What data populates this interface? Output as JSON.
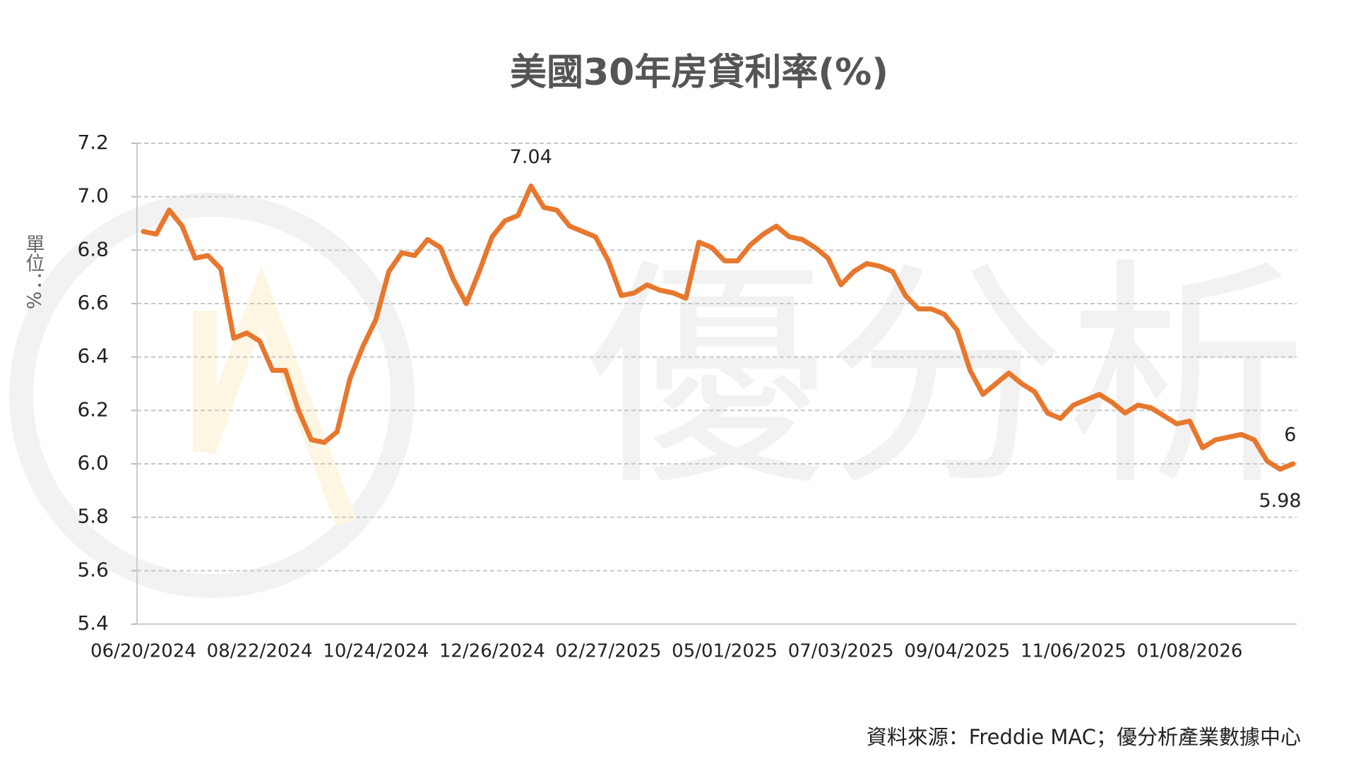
{
  "chart_data": {
    "type": "line",
    "title": "美國30年房貸利率(%)",
    "y_label": "單位：%",
    "source": "資料來源：Freddie MAC；優分析產業數據中心",
    "watermark": "優分析",
    "categories": [
      "06/20/2024",
      null,
      null,
      null,
      null,
      null,
      null,
      null,
      null,
      "08/22/2024",
      null,
      null,
      null,
      null,
      null,
      null,
      null,
      null,
      "10/24/2024",
      null,
      null,
      null,
      null,
      null,
      null,
      null,
      null,
      "12/26/2024",
      null,
      null,
      null,
      null,
      null,
      null,
      null,
      null,
      "02/27/2025",
      null,
      null,
      null,
      null,
      null,
      null,
      null,
      null,
      "05/01/2025",
      null,
      null,
      null,
      null,
      null,
      null,
      null,
      null,
      "07/03/2025",
      null,
      null,
      null,
      null,
      null,
      null,
      null,
      null,
      "09/04/2025",
      null,
      null,
      null,
      null,
      null,
      null,
      null,
      null,
      "11/06/2025",
      null,
      null,
      null,
      null,
      null,
      null,
      null,
      null,
      "01/08/2026",
      null,
      null,
      null,
      null,
      null,
      null,
      null,
      null
    ],
    "values": [
      6.87,
      6.86,
      6.95,
      6.89,
      6.77,
      6.78,
      6.73,
      6.47,
      6.49,
      6.46,
      6.35,
      6.35,
      6.2,
      6.09,
      6.08,
      6.12,
      6.32,
      6.44,
      6.54,
      6.72,
      6.79,
      6.78,
      6.84,
      6.81,
      6.69,
      6.6,
      6.72,
      6.85,
      6.91,
      6.93,
      7.04,
      6.96,
      6.95,
      6.89,
      6.87,
      6.85,
      6.76,
      6.63,
      6.64,
      6.67,
      6.65,
      6.64,
      6.62,
      6.83,
      6.81,
      6.76,
      6.76,
      6.82,
      6.86,
      6.89,
      6.85,
      6.84,
      6.81,
      6.77,
      6.67,
      6.72,
      6.75,
      6.74,
      6.72,
      6.63,
      6.58,
      6.58,
      6.56,
      6.5,
      6.35,
      6.26,
      6.3,
      6.34,
      6.3,
      6.27,
      6.19,
      6.17,
      6.22,
      6.24,
      6.26,
      6.23,
      6.19,
      6.22,
      6.21,
      6.18,
      6.15,
      6.16,
      6.06,
      6.09,
      6.1,
      6.11,
      6.09,
      6.01,
      5.98,
      6.0
    ],
    "data_labels_at": [
      30,
      88,
      89
    ],
    "color": "#e8772e",
    "ylim": [
      5.4,
      7.2
    ],
    "yticks": [
      5.4,
      5.6,
      5.8,
      {
        "value": 6,
        "label": "6.0"
      },
      6.2,
      6.4,
      6.6,
      6.8,
      {
        "value": 7,
        "label": "7.0"
      },
      7.2
    ],
    "grid": true
  }
}
